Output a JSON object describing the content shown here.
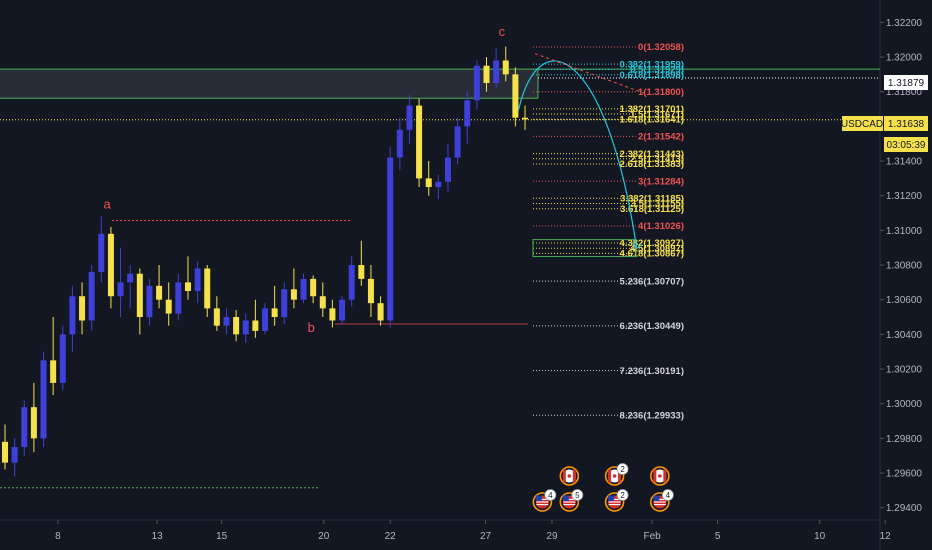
{
  "chart_data": {
    "type": "candlestick",
    "symbol": "USDCAD",
    "last_price": "1.31638",
    "countdown": "03:05:39",
    "crosshair_price": "1.31879",
    "ylim": [
      1.29329,
      1.32329
    ],
    "y_ticks": [
      "1.32200",
      "1.32000",
      "1.31800",
      "1.31400",
      "1.31200",
      "1.31000",
      "1.30800",
      "1.30600",
      "1.30400",
      "1.30200",
      "1.30000",
      "1.29800",
      "1.29600",
      "1.29400"
    ],
    "x_ticks": [
      {
        "label": "8",
        "bar": 5.5
      },
      {
        "label": "13",
        "bar": 15.8
      },
      {
        "label": "15",
        "bar": 22.5
      },
      {
        "label": "20",
        "bar": 33.1
      },
      {
        "label": "22",
        "bar": 40.0
      },
      {
        "label": "27",
        "bar": 49.9
      },
      {
        "label": "29",
        "bar": 56.8
      },
      {
        "label": "Feb",
        "bar": 67.2
      },
      {
        "label": "5",
        "bar": 74.0
      },
      {
        "label": "10",
        "bar": 84.6
      },
      {
        "label": "12",
        "bar": 91.4
      }
    ],
    "bars": [
      [
        1.2978,
        1.2988,
        1.2962,
        1.2966
      ],
      [
        1.2966,
        1.298,
        1.2958,
        1.2975
      ],
      [
        1.2975,
        1.3002,
        1.297,
        1.2998
      ],
      [
        1.2998,
        1.3012,
        1.2972,
        1.298
      ],
      [
        1.298,
        1.303,
        1.2975,
        1.3025
      ],
      [
        1.3025,
        1.305,
        1.3005,
        1.3012
      ],
      [
        1.3012,
        1.3045,
        1.3008,
        1.304
      ],
      [
        1.304,
        1.3068,
        1.303,
        1.3062
      ],
      [
        1.3062,
        1.307,
        1.304,
        1.3048
      ],
      [
        1.3048,
        1.308,
        1.3042,
        1.3076
      ],
      [
        1.3076,
        1.3108,
        1.307,
        1.3098
      ],
      [
        1.3098,
        1.3102,
        1.3055,
        1.3062
      ],
      [
        1.3062,
        1.309,
        1.305,
        1.307
      ],
      [
        1.307,
        1.308,
        1.3055,
        1.3075
      ],
      [
        1.3075,
        1.3078,
        1.304,
        1.305
      ],
      [
        1.305,
        1.3072,
        1.3045,
        1.3068
      ],
      [
        1.3068,
        1.308,
        1.3055,
        1.306
      ],
      [
        1.306,
        1.307,
        1.3045,
        1.3052
      ],
      [
        1.3052,
        1.3075,
        1.3048,
        1.307
      ],
      [
        1.307,
        1.3085,
        1.306,
        1.3065
      ],
      [
        1.3065,
        1.3082,
        1.3058,
        1.3078
      ],
      [
        1.3078,
        1.308,
        1.305,
        1.3055
      ],
      [
        1.3055,
        1.3062,
        1.3042,
        1.3045
      ],
      [
        1.3045,
        1.3055,
        1.304,
        1.305
      ],
      [
        1.305,
        1.3054,
        1.3036,
        1.304
      ],
      [
        1.304,
        1.3052,
        1.3035,
        1.3048
      ],
      [
        1.3048,
        1.306,
        1.3038,
        1.3042
      ],
      [
        1.3042,
        1.3058,
        1.304,
        1.3055
      ],
      [
        1.3055,
        1.3068,
        1.3045,
        1.305
      ],
      [
        1.305,
        1.307,
        1.3046,
        1.3066
      ],
      [
        1.3066,
        1.3078,
        1.3055,
        1.306
      ],
      [
        1.306,
        1.3075,
        1.3058,
        1.3072
      ],
      [
        1.3072,
        1.3074,
        1.3058,
        1.3062
      ],
      [
        1.3062,
        1.307,
        1.305,
        1.3055
      ],
      [
        1.3055,
        1.306,
        1.3044,
        1.3048
      ],
      [
        1.3048,
        1.3062,
        1.3046,
        1.306
      ],
      [
        1.306,
        1.3085,
        1.3056,
        1.308
      ],
      [
        1.308,
        1.3094,
        1.3068,
        1.3072
      ],
      [
        1.3072,
        1.308,
        1.305,
        1.3058
      ],
      [
        1.3058,
        1.3062,
        1.3045,
        1.3048
      ],
      [
        1.3048,
        1.3148,
        1.3044,
        1.3142
      ],
      [
        1.3142,
        1.3165,
        1.3135,
        1.3158
      ],
      [
        1.3158,
        1.3178,
        1.315,
        1.3172
      ],
      [
        1.3172,
        1.3176,
        1.3125,
        1.313
      ],
      [
        1.313,
        1.314,
        1.312,
        1.3125
      ],
      [
        1.3125,
        1.3132,
        1.3118,
        1.3128
      ],
      [
        1.3128,
        1.315,
        1.3122,
        1.3142
      ],
      [
        1.3142,
        1.3165,
        1.3138,
        1.316
      ],
      [
        1.316,
        1.318,
        1.315,
        1.3175
      ],
      [
        1.3175,
        1.3198,
        1.317,
        1.3195
      ],
      [
        1.3195,
        1.32,
        1.318,
        1.3185
      ],
      [
        1.3185,
        1.3205,
        1.3182,
        1.3198
      ],
      [
        1.3198,
        1.3206,
        1.3186,
        1.319
      ],
      [
        1.319,
        1.3194,
        1.316,
        1.3165
      ],
      [
        1.3165,
        1.3172,
        1.3158,
        1.3164
      ]
    ],
    "fib_levels": [
      {
        "label": "0(1.32058)",
        "y": 1.32058,
        "color": "#ef5350",
        "style": "dotted"
      },
      {
        "label": "0.382(1.31959)",
        "y": 1.31959,
        "color": "#26c6da",
        "style": "dotted"
      },
      {
        "label": "0.5(1.31929)",
        "y": 1.31929,
        "color": "#26c6da",
        "style": "dotted"
      },
      {
        "label": "0.618(1.31898)",
        "y": 1.31898,
        "color": "#26c6da",
        "style": "dotted"
      },
      {
        "label": "1(1.31800)",
        "y": 1.318,
        "color": "#ef5350",
        "style": "dotted"
      },
      {
        "label": "1.382(1.31701)",
        "y": 1.31701,
        "color": "#f5e14b",
        "style": "dotted"
      },
      {
        "label": "1.5(1.31671)",
        "y": 1.31671,
        "color": "#f5e14b",
        "style": "dotted"
      },
      {
        "label": "1.618(1.31641)",
        "y": 1.31641,
        "color": "#f5e14b",
        "style": "dotted"
      },
      {
        "label": "2(1.31542)",
        "y": 1.31542,
        "color": "#ef5350",
        "style": "dotted"
      },
      {
        "label": "2.382(1.31443)",
        "y": 1.31443,
        "color": "#f5e14b",
        "style": "dotted"
      },
      {
        "label": "2.5(1.31413)",
        "y": 1.31413,
        "color": "#f5e14b",
        "style": "dotted"
      },
      {
        "label": "2.618(1.31383)",
        "y": 1.31383,
        "color": "#f5e14b",
        "style": "dotted"
      },
      {
        "label": "3(1.31284)",
        "y": 1.31284,
        "color": "#ef5350",
        "style": "dotted"
      },
      {
        "label": "3.382(1.31185)",
        "y": 1.31185,
        "color": "#f5e14b",
        "style": "dotted"
      },
      {
        "label": "3.5(1.31155)",
        "y": 1.31155,
        "color": "#f5e14b",
        "style": "dotted"
      },
      {
        "label": "3.618(1.31125)",
        "y": 1.31125,
        "color": "#f5e14b",
        "style": "dotted"
      },
      {
        "label": "4(1.31026)",
        "y": 1.31026,
        "color": "#ef5350",
        "style": "dotted"
      },
      {
        "label": "4.382(1.30927)",
        "y": 1.30927,
        "color": "#f5e14b",
        "style": "dotted"
      },
      {
        "label": "4.5(1.30897)",
        "y": 1.30897,
        "color": "#f5e14b",
        "style": "dotted"
      },
      {
        "label": "4.618(1.30867)",
        "y": 1.30867,
        "color": "#f5e14b",
        "style": "dotted"
      },
      {
        "label": "5.236(1.30707)",
        "y": 1.30707,
        "color": "#d1d4dc",
        "style": "dotted"
      },
      {
        "label": "6.236(1.30449)",
        "y": 1.30449,
        "color": "#d1d4dc",
        "style": "dotted"
      },
      {
        "label": "7.236(1.30191)",
        "y": 1.30191,
        "color": "#d1d4dc",
        "style": "dotted"
      },
      {
        "label": "8.236(1.29933)",
        "y": 1.29933,
        "color": "#d1d4dc",
        "style": "dotted"
      }
    ],
    "zone_top": 1.3193,
    "zone_bottom": 1.31762,
    "target_zone": [
      1.30895,
      1.30935
    ],
    "wave_labels": [
      {
        "label": "a",
        "bar": 10.6,
        "y": 1.31125
      },
      {
        "label": "b",
        "bar": 31.8,
        "y": 1.30415
      },
      {
        "label": "c",
        "bar": 51.6,
        "y": 1.3212
      }
    ],
    "events": [
      {
        "bar": 55.8,
        "row": 2,
        "flag": "us",
        "badge": "4"
      },
      {
        "bar": 58.6,
        "row": 2,
        "flag": "us",
        "badge": "5"
      },
      {
        "bar": 58.6,
        "row": 1,
        "flag": "ca",
        "badge": ""
      },
      {
        "bar": 63.3,
        "row": 1,
        "flag": "ca",
        "badge": "2"
      },
      {
        "bar": 63.3,
        "row": 2,
        "flag": "us",
        "badge": "2"
      },
      {
        "bar": 68.0,
        "row": 1,
        "flag": "ca",
        "badge": ""
      },
      {
        "bar": 68.0,
        "row": 2,
        "flag": "us",
        "badge": "4"
      }
    ]
  },
  "colors": {
    "background": "#131722",
    "bull": "#3f3fd9",
    "bear": "#f5e14b",
    "zone_line": "#4caf50",
    "projection": "#26c6da",
    "price_tag": "#f5e14b"
  }
}
